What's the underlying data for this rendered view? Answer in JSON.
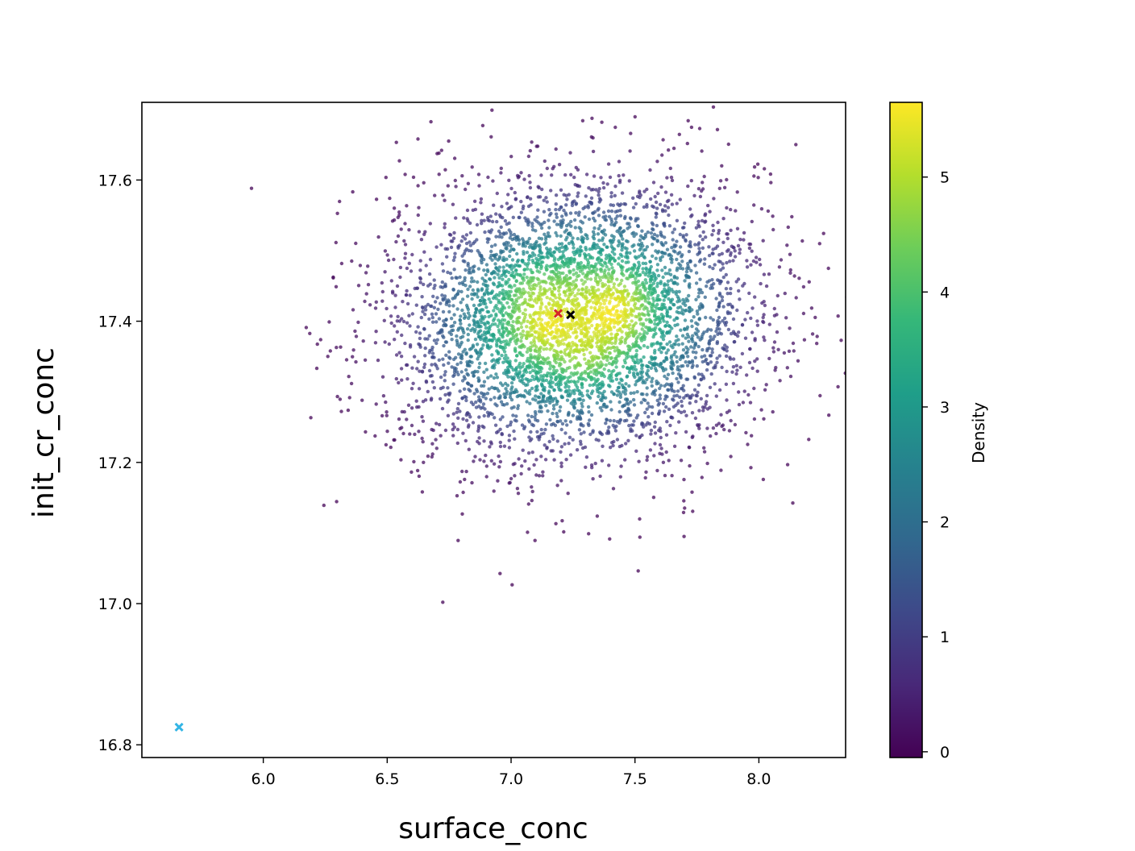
{
  "chart_data": {
    "type": "scatter",
    "title": "",
    "xlabel": "surface_conc",
    "ylabel": "init_cr_conc",
    "xlim": [
      5.51,
      8.35
    ],
    "ylim": [
      16.782,
      17.71
    ],
    "xticks": [
      6.0,
      6.5,
      7.0,
      7.5,
      8.0
    ],
    "xtick_labels": [
      "6.0",
      "6.5",
      "7.0",
      "7.5",
      "8.0"
    ],
    "yticks": [
      16.8,
      17.0,
      17.2,
      17.4,
      17.6
    ],
    "ytick_labels": [
      "16.8",
      "17.0",
      "17.2",
      "17.4",
      "17.6"
    ],
    "grid": false,
    "colormap": "viridis",
    "colorbar": {
      "label": "Density",
      "range": [
        -0.05,
        5.65
      ],
      "ticks": [
        0,
        1,
        2,
        3,
        4,
        5
      ],
      "tick_labels": [
        "0",
        "1",
        "2",
        "3",
        "4",
        "5"
      ]
    },
    "cloud": {
      "description_free": true,
      "point_count": 5000,
      "components": [
        {
          "mean": [
            7.11,
            17.39
          ],
          "std": [
            0.3,
            0.09
          ],
          "weight": 0.4
        },
        {
          "mean": [
            7.42,
            17.42
          ],
          "std": [
            0.3,
            0.09
          ],
          "weight": 0.4
        },
        {
          "mean": [
            7.28,
            17.4
          ],
          "std": [
            0.4,
            0.11
          ],
          "weight": 0.2
        }
      ]
    },
    "hotspots": [
      {
        "x": 7.12,
        "y": 17.39,
        "density": 5.6
      },
      {
        "x": 7.44,
        "y": 17.4,
        "density": 5.5
      },
      {
        "x": 7.45,
        "y": 17.44,
        "density": 5.2
      },
      {
        "x": 7.07,
        "y": 17.45,
        "density": 4.8
      },
      {
        "x": 7.31,
        "y": 17.34,
        "density": 4.6
      }
    ],
    "markers": [
      {
        "name": "red-marker",
        "x": 7.19,
        "y": 17.411,
        "color": "#d62728",
        "symbol": "x"
      },
      {
        "name": "black-marker",
        "x": 7.24,
        "y": 17.409,
        "color": "#000000",
        "symbol": "x"
      },
      {
        "name": "blue-marker",
        "x": 5.66,
        "y": 16.825,
        "color": "#33b5e5",
        "symbol": "x"
      }
    ]
  }
}
